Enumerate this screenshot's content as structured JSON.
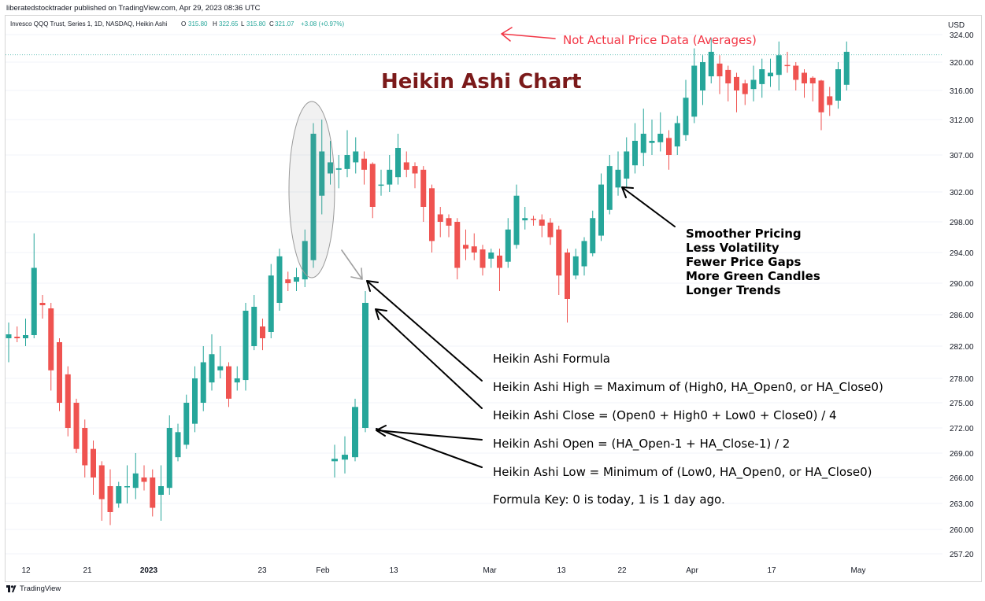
{
  "header": {
    "publisher": "liberatedstocktrader published on TradingView.com, Apr 29, 2023 08:36 UTC",
    "symbol_info": "Invesco QQQ Trust, Series 1, 1D, NASDAQ, Heikin Ashi",
    "ohlc": {
      "o_label": "O",
      "o": "315.80",
      "h_label": "H",
      "h": "322.65",
      "l_label": "L",
      "l": "315.80",
      "c_label": "C",
      "c": "321.07",
      "change": "+3.08 (+0.97%)"
    }
  },
  "branding": {
    "name": "TradingView",
    "icon": "tradingview-logo-icon"
  },
  "colors": {
    "up": "#26a69a",
    "down": "#ef5350",
    "axis_text": "#131722",
    "red_annotation": "#f23645",
    "title": "#7b1a1a",
    "grid": "#f0f3fa"
  },
  "annotations": {
    "title": "Heikin Ashi Chart",
    "not_actual": "Not Actual Price Data (Averages)",
    "benefits": [
      "Smoother Pricing",
      "Less Volatility",
      "Fewer Price Gaps",
      "More Green Candles",
      "Longer Trends"
    ],
    "formula": [
      "Heikin Ashi Formula",
      "Heikin Ashi High = Maximum of (High0, HA_Open0, or HA_Close0)",
      "Heikin Ashi Close = (Open0 + High0 + Low0 + Close0) / 4",
      "Heikin Ashi Open = (HA_Open-1 + HA_Close-1) / 2",
      "Heikin Ashi Low = Minimum of (Low0, HA_Open0, or HA_Close0)",
      "Formula Key: 0 is today, 1 is 1 day ago."
    ]
  },
  "chart_data": {
    "type": "candlestick",
    "style": "Heikin Ashi",
    "currency_label": "USD",
    "y_ticks": [
      "324.00",
      "320.00",
      "316.00",
      "312.00",
      "307.00",
      "302.00",
      "298.00",
      "294.00",
      "290.00",
      "286.00",
      "282.00",
      "278.00",
      "275.00",
      "272.00",
      "269.00",
      "266.00",
      "263.00",
      "260.00",
      "257.20"
    ],
    "x_ticks": [
      {
        "label": "12",
        "bold": false
      },
      {
        "label": "21",
        "bold": false
      },
      {
        "label": "2023",
        "bold": true
      },
      {
        "label": "23",
        "bold": false
      },
      {
        "label": "Feb",
        "bold": false
      },
      {
        "label": "13",
        "bold": false
      },
      {
        "label": "Mar",
        "bold": false
      },
      {
        "label": "13",
        "bold": false
      },
      {
        "label": "22",
        "bold": false
      },
      {
        "label": "Apr",
        "bold": false
      },
      {
        "label": "17",
        "bold": false
      },
      {
        "label": "May",
        "bold": false
      }
    ],
    "last_price_line": 321.07,
    "candles": [
      [
        283.0,
        283.5,
        285.0,
        280.0
      ],
      [
        283.2,
        283.0,
        284.5,
        282.5
      ],
      [
        283.0,
        283.4,
        285.5,
        282.0
      ],
      [
        283.4,
        292.0,
        296.5,
        283.0
      ],
      [
        287.5,
        287.2,
        288.5,
        285.5
      ],
      [
        286.8,
        279.0,
        287.5,
        276.5
      ],
      [
        282.5,
        275.0,
        283.0,
        274.0
      ],
      [
        278.5,
        272.0,
        279.5,
        271.0
      ],
      [
        275.0,
        269.5,
        275.5,
        269.0
      ],
      [
        272.0,
        267.5,
        273.0,
        266.0
      ],
      [
        269.5,
        266.0,
        270.5,
        264.0
      ],
      [
        267.5,
        263.5,
        268.0,
        261.0
      ],
      [
        265.0,
        262.0,
        267.0,
        260.5
      ],
      [
        263.0,
        265.0,
        265.5,
        262.5
      ],
      [
        265.0,
        265.0,
        267.5,
        263.0
      ],
      [
        264.8,
        266.5,
        269.0,
        263.5
      ],
      [
        266.0,
        265.5,
        267.5,
        264.5
      ],
      [
        266.0,
        262.5,
        267.0,
        261.5
      ],
      [
        264.0,
        265.0,
        267.5,
        261.0
      ],
      [
        264.8,
        272.0,
        273.5,
        264.0
      ],
      [
        268.5,
        271.5,
        272.5,
        268.0
      ],
      [
        270.0,
        275.0,
        276.0,
        269.5
      ],
      [
        272.5,
        278.0,
        279.5,
        271.5
      ],
      [
        275.0,
        280.0,
        282.0,
        274.0
      ],
      [
        277.5,
        281.0,
        283.5,
        276.5
      ],
      [
        279.0,
        279.5,
        282.0,
        278.0
      ],
      [
        279.5,
        275.5,
        280.0,
        274.5
      ],
      [
        277.5,
        278.0,
        279.5,
        276.5
      ],
      [
        277.8,
        286.5,
        287.5,
        276.5
      ],
      [
        282.0,
        287.0,
        288.5,
        281.5
      ],
      [
        284.5,
        283.0,
        285.5,
        281.5
      ],
      [
        283.8,
        291.0,
        292.5,
        283.0
      ],
      [
        287.5,
        293.5,
        294.5,
        286.5
      ],
      [
        290.5,
        290.0,
        291.5,
        289.0
      ],
      [
        290.2,
        290.8,
        292.0,
        289.0
      ],
      [
        290.5,
        295.5,
        297.0,
        289.5
      ],
      [
        293.0,
        310.0,
        311.5,
        292.0
      ],
      [
        301.5,
        307.5,
        312.0,
        299.0
      ],
      [
        304.5,
        306.0,
        309.0,
        303.0
      ],
      [
        305.0,
        305.2,
        307.0,
        302.5
      ],
      [
        305.1,
        307.0,
        310.5,
        304.0
      ],
      [
        306.0,
        307.5,
        309.5,
        304.5
      ],
      [
        306.5,
        305.0,
        307.5,
        303.0
      ],
      [
        305.8,
        300.0,
        306.0,
        298.5
      ],
      [
        302.9,
        303.0,
        305.0,
        301.5
      ],
      [
        303.0,
        305.0,
        307.0,
        302.0
      ],
      [
        304.0,
        308.0,
        310.0,
        303.0
      ],
      [
        306.0,
        305.0,
        307.5,
        304.0
      ],
      [
        305.5,
        304.5,
        306.0,
        302.5
      ],
      [
        305.0,
        300.0,
        305.5,
        298.0
      ],
      [
        302.5,
        295.5,
        303.0,
        294.0
      ],
      [
        299.0,
        298.0,
        300.0,
        296.0
      ],
      [
        298.5,
        297.5,
        299.0,
        296.0
      ],
      [
        298.0,
        292.0,
        298.5,
        290.5
      ],
      [
        295.0,
        294.5,
        297.0,
        293.0
      ],
      [
        294.8,
        294.0,
        296.5,
        293.0
      ],
      [
        294.4,
        292.0,
        295.0,
        291.0
      ],
      [
        293.2,
        294.0,
        294.5,
        292.0
      ],
      [
        293.6,
        292.0,
        294.5,
        289.0
      ],
      [
        292.8,
        297.0,
        298.5,
        292.0
      ],
      [
        295.0,
        301.5,
        303.0,
        294.5
      ],
      [
        298.2,
        298.5,
        300.0,
        297.0
      ],
      [
        298.4,
        298.3,
        298.8,
        297.5
      ],
      [
        298.3,
        297.5,
        299.0,
        296.0
      ],
      [
        297.9,
        296.0,
        298.5,
        295.0
      ],
      [
        297.0,
        291.0,
        297.5,
        288.5
      ],
      [
        294.0,
        288.0,
        294.5,
        285.0
      ],
      [
        291.0,
        293.5,
        294.5,
        290.5
      ],
      [
        292.2,
        295.5,
        296.0,
        291.0
      ],
      [
        293.9,
        298.5,
        299.5,
        293.5
      ],
      [
        296.2,
        303.0,
        304.5,
        295.5
      ],
      [
        299.6,
        305.5,
        307.0,
        299.0
      ],
      [
        302.6,
        305.0,
        307.5,
        301.5
      ],
      [
        303.8,
        307.5,
        309.5,
        302.5
      ],
      [
        305.6,
        309.0,
        311.5,
        304.5
      ],
      [
        307.3,
        310.0,
        313.5,
        305.5
      ],
      [
        308.7,
        309.0,
        312.0,
        307.0
      ],
      [
        308.8,
        310.0,
        313.0,
        307.5
      ],
      [
        309.4,
        307.0,
        310.5,
        305.0
      ],
      [
        308.2,
        311.5,
        312.5,
        307.0
      ],
      [
        309.8,
        315.0,
        317.5,
        309.0
      ],
      [
        312.4,
        319.5,
        322.0,
        311.5
      ],
      [
        316.0,
        320.0,
        321.0,
        314.0
      ],
      [
        318.0,
        321.5,
        323.5,
        317.0
      ],
      [
        319.8,
        318.0,
        321.0,
        315.5
      ],
      [
        318.9,
        317.0,
        319.5,
        314.5
      ],
      [
        317.9,
        316.0,
        318.5,
        313.0
      ],
      [
        317.0,
        315.5,
        317.5,
        314.0
      ],
      [
        316.2,
        317.5,
        319.5,
        314.5
      ],
      [
        316.9,
        319.0,
        320.5,
        315.0
      ],
      [
        318.0,
        318.5,
        320.5,
        316.5
      ],
      [
        318.2,
        321.0,
        323.0,
        316.0
      ],
      [
        319.6,
        319.5,
        321.5,
        318.5
      ],
      [
        319.5,
        317.5,
        320.0,
        316.0
      ],
      [
        318.5,
        317.0,
        319.0,
        315.0
      ],
      [
        317.8,
        317.0,
        318.0,
        314.5
      ],
      [
        317.4,
        313.0,
        317.5,
        310.5
      ],
      [
        315.2,
        314.0,
        316.5,
        312.5
      ],
      [
        314.6,
        319.0,
        320.0,
        313.5
      ],
      [
        316.8,
        321.5,
        323.0,
        316.0
      ]
    ]
  }
}
